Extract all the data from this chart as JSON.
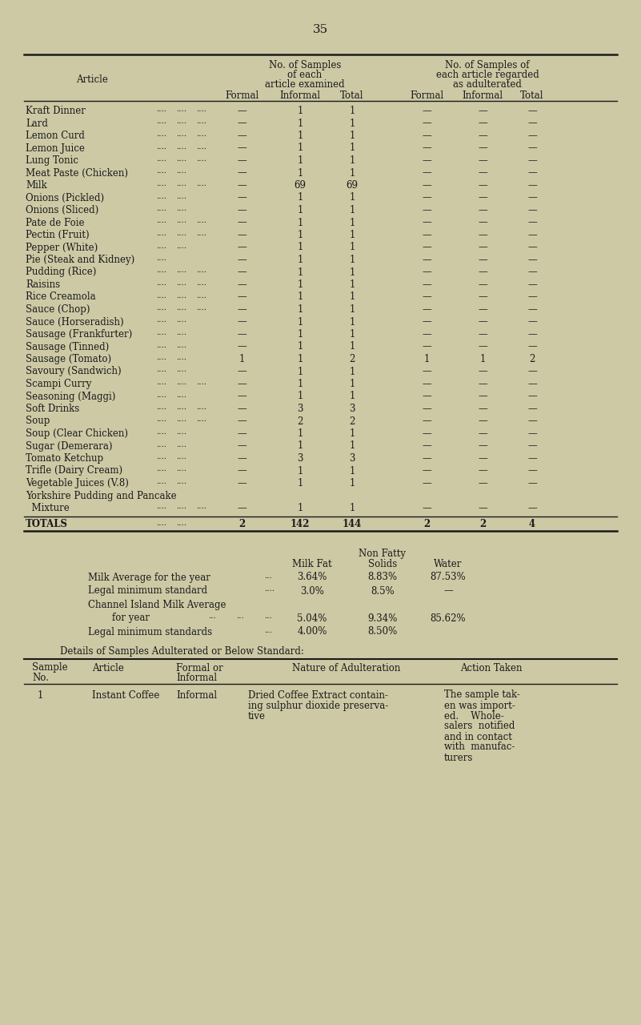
{
  "bg_color": "#cdc9a5",
  "text_color": "#1a1a1a",
  "page_number": "35",
  "rows": [
    [
      "Kraft Dinner",
      "....",
      "....",
      "....",
      "—",
      "1",
      "1",
      "—",
      "—",
      "—"
    ],
    [
      "Lard",
      "....",
      "....",
      "....",
      "—",
      "1",
      "1",
      "—",
      "—",
      "—"
    ],
    [
      "Lemon Curd",
      "....",
      "....",
      "....",
      "—",
      "1",
      "1",
      "—",
      "—",
      "—"
    ],
    [
      "Lemon Juice",
      "....",
      "....",
      "....",
      "—",
      "1",
      "1",
      "—",
      "—",
      "—"
    ],
    [
      "Lung Tonic",
      "....",
      "....",
      "....",
      "—",
      "1",
      "1",
      "—",
      "—",
      "—"
    ],
    [
      "Meat Paste (Chicken)",
      "....",
      "....",
      "",
      "—",
      "1",
      "1",
      "—",
      "—",
      "—"
    ],
    [
      "Milk",
      "....",
      "....",
      "....",
      "—",
      "69",
      "69",
      "—",
      "—",
      "—"
    ],
    [
      "Onions (Pickled)",
      "....",
      "....",
      "",
      "—",
      "1",
      "1",
      "—",
      "—",
      "—"
    ],
    [
      "Onions (Sliced)",
      "....",
      "....",
      "",
      "—",
      "1",
      "1",
      "—",
      "—",
      "—"
    ],
    [
      "Pate de Foie",
      "....",
      "....",
      "....",
      "—",
      "1",
      "1",
      "—",
      "—",
      "—"
    ],
    [
      "Pectin (Fruit)",
      "....",
      "....",
      "....",
      "—",
      "1",
      "1",
      "—",
      "—",
      "—"
    ],
    [
      "Pepper (White)",
      "....",
      "....",
      "",
      "—",
      "1",
      "1",
      "—",
      "—",
      "—"
    ],
    [
      "Pie (Steak and Kidney)",
      "....",
      "",
      "",
      "—",
      "1",
      "1",
      "—",
      "—",
      "—"
    ],
    [
      "Pudding (Rice)",
      "....",
      "....",
      "....",
      "—",
      "1",
      "1",
      "—",
      "—",
      "—"
    ],
    [
      "Raisins",
      "....",
      "....",
      "....",
      "—",
      "1",
      "1",
      "—",
      "—",
      "—"
    ],
    [
      "Rice Creamola",
      "....",
      "....",
      "....",
      "—",
      "1",
      "1",
      "—",
      "—",
      "—"
    ],
    [
      "Sauce (Chop)",
      "....",
      "....",
      "....",
      "—",
      "1",
      "1",
      "—",
      "—",
      "—"
    ],
    [
      "Sauce (Horseradish)",
      "....",
      "....",
      "",
      "—",
      "1",
      "1",
      "—",
      "—",
      "—"
    ],
    [
      "Sausage (Frankfurter)",
      "....",
      "....",
      "",
      "—",
      "1",
      "1",
      "—",
      "—",
      "—"
    ],
    [
      "Sausage (Tinned)",
      "....",
      "....",
      "",
      "—",
      "1",
      "1",
      "—",
      "—",
      "—"
    ],
    [
      "Sausage (Tomato)",
      "....",
      "....",
      "",
      "1",
      "1",
      "2",
      "1",
      "1",
      "2"
    ],
    [
      "Savoury (Sandwich)",
      "....",
      "....",
      "",
      "—",
      "1",
      "1",
      "—",
      "—",
      "—"
    ],
    [
      "Scampi Curry",
      "....",
      "....",
      "....",
      "—",
      "1",
      "1",
      "—",
      "—",
      "—"
    ],
    [
      "Seasoning (Maggi)",
      "....",
      "....",
      "",
      "—",
      "1",
      "1",
      "—",
      "—",
      "—"
    ],
    [
      "Soft Drinks",
      "....",
      "....",
      "....",
      "—",
      "3",
      "3",
      "—",
      "—",
      "—"
    ],
    [
      "Soup",
      "....",
      "....",
      "....",
      "—",
      "2",
      "2",
      "—",
      "—",
      "—"
    ],
    [
      "Soup (Clear Chicken)",
      "....",
      "....",
      "",
      "—",
      "1",
      "1",
      "—",
      "—",
      "—"
    ],
    [
      "Sugar (Demerara)",
      "....",
      "....",
      "",
      "—",
      "1",
      "1",
      "—",
      "—",
      "—"
    ],
    [
      "Tomato Ketchup",
      "....",
      "....",
      "",
      "—",
      "3",
      "3",
      "—",
      "—",
      "—"
    ],
    [
      "Trifle (Dairy Cream)",
      "....",
      "....",
      "",
      "—",
      "1",
      "1",
      "—",
      "—",
      "—"
    ],
    [
      "Vegetable Juices (V.8)",
      "....",
      "....",
      "",
      "—",
      "1",
      "1",
      "—",
      "—",
      "—"
    ],
    [
      "Yorkshire Pudding and Pancake",
      "",
      "",
      "",
      "",
      "",
      "",
      "",
      "",
      ""
    ],
    [
      "  Mixture",
      "....",
      "....",
      "....",
      "—",
      "1",
      "1",
      "—",
      "—",
      "—"
    ]
  ],
  "totals_row": [
    "TOTALS",
    "....",
    "....",
    "2",
    "142",
    "144",
    "2",
    "2",
    "4"
  ],
  "milk_rows": [
    [
      "Milk Average for the year",
      "...",
      "3.64%",
      "8.83%",
      "87.53%"
    ],
    [
      "Legal minimum standard",
      "....",
      "3.0%",
      "8.5%",
      "—"
    ],
    [
      "Channel Island Milk Average",
      "",
      "",
      "",
      ""
    ],
    [
      "  for year",
      "...",
      "...",
      "...",
      "5.04%",
      "9.34%",
      "85.62%"
    ],
    [
      "Legal minimum standards",
      "...",
      "4.00%",
      "8.50%",
      ""
    ]
  ],
  "details_title": "Details of Samples Adulterated or Below Standard:",
  "details_headers": [
    "Sample\nNo.",
    "Article",
    "Formal or\nInformal",
    "Nature of Adulteration",
    "Action Taken"
  ],
  "details_row_no": "1",
  "details_row_article": "Instant Coffee",
  "details_row_formal": "Informal",
  "details_row_nature": [
    "Dried Coffee Extract contain-",
    "ing sulphur dioxide preserva-",
    "tive"
  ],
  "details_row_action": [
    "The sample tak-",
    "en was import-",
    "ed.    Whole-",
    "salers  notified",
    "and in contact",
    "with  manufac-",
    "turers"
  ]
}
